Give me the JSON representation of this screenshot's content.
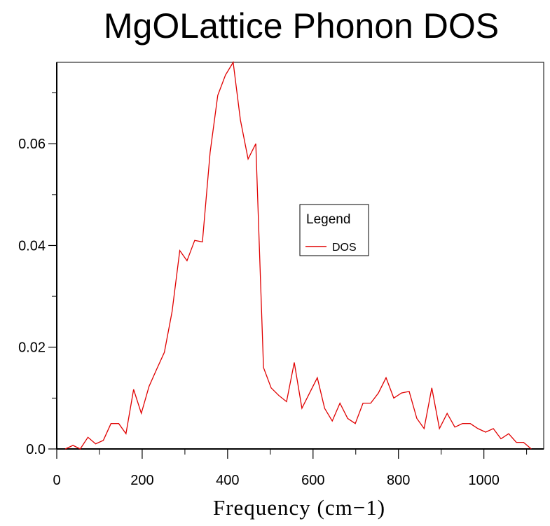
{
  "chart_data": {
    "type": "line",
    "title": "MgOLattice Phonon DOS",
    "xlabel": "Frequency (cm−1)",
    "ylabel": "",
    "xlim": [
      0,
      1140
    ],
    "ylim": [
      0,
      0.076
    ],
    "x_ticks": [
      0,
      200,
      400,
      600,
      800,
      1000
    ],
    "y_ticks": [
      0.0,
      0.02,
      0.04,
      0.06
    ],
    "x_tick_labels": [
      "0",
      "200",
      "400",
      "600",
      "800",
      "1000"
    ],
    "y_tick_labels": [
      "0.0",
      "0.02",
      "0.04",
      "0.06"
    ],
    "grid": false,
    "legend": {
      "title": "Legend",
      "placement": "center-right"
    },
    "series": [
      {
        "name": "DOS",
        "color": "#e00000",
        "x": [
          20,
          38,
          55,
          73,
          91,
          109,
          127,
          145,
          162,
          180,
          198,
          216,
          234,
          252,
          270,
          288,
          305,
          323,
          341,
          359,
          377,
          395,
          413,
          430,
          448,
          466,
          484,
          502,
          520,
          538,
          556,
          574,
          592,
          610,
          627,
          645,
          663,
          681,
          699,
          717,
          735,
          753,
          771,
          789,
          807,
          825,
          843,
          860,
          878,
          896,
          914,
          932,
          950,
          968,
          986,
          1004,
          1022,
          1040,
          1058,
          1076,
          1093,
          1111
        ],
        "y": [
          0.0,
          0.0007,
          0.0,
          0.0023,
          0.001,
          0.0017,
          0.005,
          0.005,
          0.003,
          0.0117,
          0.007,
          0.0123,
          0.0157,
          0.019,
          0.027,
          0.039,
          0.037,
          0.041,
          0.0407,
          0.0583,
          0.0695,
          0.0735,
          0.076,
          0.0647,
          0.057,
          0.06,
          0.016,
          0.012,
          0.0105,
          0.0093,
          0.017,
          0.008,
          0.011,
          0.014,
          0.008,
          0.0055,
          0.009,
          0.006,
          0.005,
          0.009,
          0.009,
          0.011,
          0.014,
          0.01,
          0.011,
          0.0113,
          0.006,
          0.004,
          0.012,
          0.004,
          0.007,
          0.0043,
          0.005,
          0.005,
          0.004,
          0.0033,
          0.004,
          0.002,
          0.003,
          0.0013,
          0.0013,
          0.0
        ]
      }
    ]
  }
}
